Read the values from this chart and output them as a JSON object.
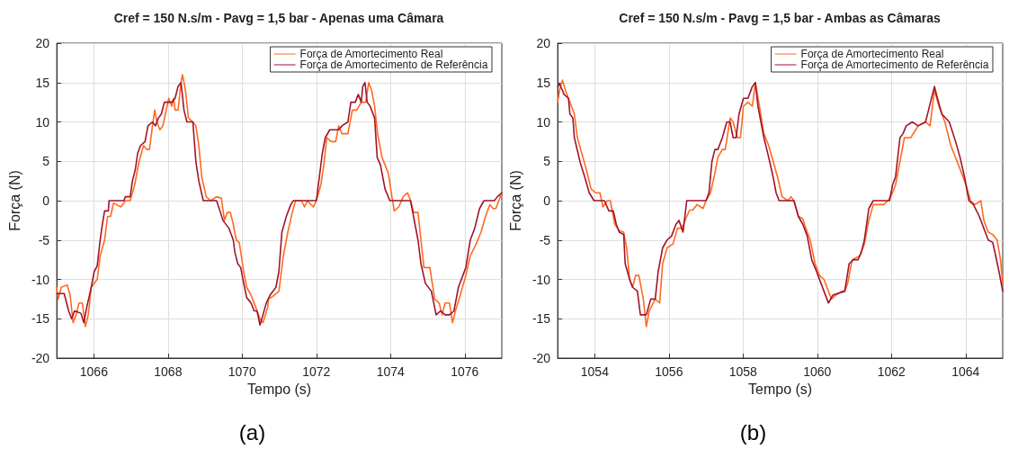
{
  "chart_data": [
    {
      "type": "line",
      "title": "Cref = 150 N.s/m - Pavg = 1,5 bar - Apenas uma Câmara",
      "xlabel": "Tempo (s)",
      "ylabel": "Força (N)",
      "annotations": [
        "(a)"
      ],
      "xlim": [
        1065,
        1077
      ],
      "xticks": [
        1066,
        1068,
        1070,
        1072,
        1074,
        1076
      ],
      "ylim": [
        -20,
        20
      ],
      "yticks": [
        -20,
        -15,
        -10,
        -5,
        0,
        5,
        10,
        15,
        20
      ],
      "grid": true,
      "legend": "top right",
      "marker": "none",
      "line_style": "solid",
      "series": [
        {
          "name": "Força de Amortecimento Real",
          "color": "#ff6a1f",
          "x": [
            1065.0,
            1065.04,
            1065.12,
            1065.28,
            1065.36,
            1065.44,
            1065.52,
            1065.6,
            1065.69,
            1065.77,
            1065.85,
            1065.93,
            1066.09,
            1066.17,
            1066.29,
            1066.37,
            1066.45,
            1066.53,
            1066.73,
            1066.85,
            1066.98,
            1067.1,
            1067.22,
            1067.34,
            1067.42,
            1067.5,
            1067.58,
            1067.64,
            1067.7,
            1067.78,
            1067.86,
            1068.02,
            1068.1,
            1068.15,
            1068.19,
            1068.27,
            1068.35,
            1068.39,
            1068.47,
            1068.55,
            1068.67,
            1068.75,
            1068.83,
            1068.91,
            1069.03,
            1069.15,
            1069.31,
            1069.44,
            1069.52,
            1069.6,
            1069.68,
            1069.76,
            1069.84,
            1069.92,
            1070.04,
            1070.12,
            1070.24,
            1070.36,
            1070.48,
            1070.56,
            1070.69,
            1070.71,
            1070.87,
            1070.99,
            1071.11,
            1071.23,
            1071.35,
            1071.44,
            1071.6,
            1071.68,
            1071.76,
            1071.92,
            1072.0,
            1072.12,
            1072.2,
            1072.28,
            1072.4,
            1072.52,
            1072.6,
            1072.69,
            1072.85,
            1072.97,
            1073.09,
            1073.21,
            1073.33,
            1073.41,
            1073.49,
            1073.57,
            1073.65,
            1073.77,
            1073.94,
            1074.02,
            1074.1,
            1074.22,
            1074.34,
            1074.46,
            1074.54,
            1074.62,
            1074.74,
            1074.82,
            1074.9,
            1075.06,
            1075.19,
            1075.31,
            1075.39,
            1075.47,
            1075.59,
            1075.67,
            1075.75,
            1075.91,
            1076.03,
            1076.15,
            1076.31,
            1076.44,
            1076.56,
            1076.68,
            1076.76,
            1076.84,
            1076.92,
            1077.0
          ],
          "values": [
            -11,
            -12.5,
            -11,
            -10.7,
            -12,
            -15.5,
            -14.5,
            -13,
            -13,
            -16,
            -14.5,
            -11,
            -10,
            -7,
            -5,
            -2,
            -2,
            -0.3,
            -0.8,
            0,
            0,
            2,
            5,
            7,
            6.5,
            6.5,
            9.5,
            11.5,
            10,
            9,
            9.5,
            13,
            12,
            13,
            11.5,
            11.5,
            15,
            16,
            14,
            10.5,
            10,
            9.5,
            7,
            3,
            0.5,
            0,
            0.5,
            0.3,
            -2.5,
            -1.5,
            -1.5,
            -3,
            -5,
            -5.3,
            -9,
            -11,
            -12,
            -13.5,
            -15,
            -15.5,
            -13.5,
            -12.5,
            -12,
            -11.5,
            -7,
            -4,
            -1.5,
            0,
            0,
            -0.8,
            0,
            -0.8,
            0,
            2,
            4.5,
            8,
            7.5,
            7.5,
            9.5,
            8.5,
            8.5,
            11.5,
            11.5,
            12.5,
            12.5,
            15,
            14,
            12,
            8.5,
            5.5,
            3.5,
            1,
            -1.3,
            -0.8,
            0.5,
            1,
            0,
            -1.5,
            -1.5,
            -5,
            -8.5,
            -8.5,
            -12.5,
            -13,
            -14.5,
            -13,
            -13,
            -15.5,
            -14,
            -11.5,
            -9.5,
            -7,
            -5.5,
            -4,
            -2,
            -0.5,
            -1,
            -1,
            0,
            1
          ]
        },
        {
          "name": "Força de Amortecimento de Referência",
          "color": "#a1132e",
          "x": [
            1065.0,
            1065.2,
            1065.32,
            1065.4,
            1065.48,
            1065.65,
            1065.73,
            1065.81,
            1065.93,
            1066.01,
            1066.09,
            1066.17,
            1066.23,
            1066.29,
            1066.39,
            1066.41,
            1066.81,
            1066.85,
            1066.98,
            1067.04,
            1067.12,
            1067.18,
            1067.26,
            1067.38,
            1067.46,
            1067.58,
            1067.66,
            1067.74,
            1067.82,
            1067.9,
            1068.1,
            1068.19,
            1068.27,
            1068.35,
            1068.43,
            1068.51,
            1068.67,
            1068.75,
            1068.83,
            1068.95,
            1069.31,
            1069.4,
            1069.48,
            1069.64,
            1069.76,
            1069.8,
            1069.88,
            1069.96,
            1070.04,
            1070.12,
            1070.24,
            1070.32,
            1070.4,
            1070.48,
            1070.56,
            1070.65,
            1070.75,
            1070.91,
            1070.99,
            1071.07,
            1071.19,
            1071.31,
            1071.38,
            1072.0,
            1072.08,
            1072.16,
            1072.24,
            1072.36,
            1072.6,
            1072.69,
            1072.85,
            1072.93,
            1073.05,
            1073.13,
            1073.21,
            1073.25,
            1073.31,
            1073.37,
            1073.45,
            1073.57,
            1073.64,
            1073.73,
            1073.85,
            1073.98,
            1074.54,
            1074.66,
            1074.74,
            1074.82,
            1074.94,
            1075.1,
            1075.23,
            1075.35,
            1075.47,
            1075.59,
            1075.71,
            1075.83,
            1076.03,
            1076.15,
            1076.27,
            1076.4,
            1076.52,
            1076.8,
            1076.88,
            1077.0
          ],
          "values": [
            -11.8,
            -11.8,
            -14,
            -15,
            -14,
            -14.3,
            -15.5,
            -13.5,
            -11,
            -9,
            -8.3,
            -5,
            -3,
            -1.3,
            -1.3,
            0,
            0,
            0.5,
            0.5,
            2.5,
            4,
            6,
            7,
            7.5,
            9.5,
            10,
            9.5,
            10.5,
            11,
            12.5,
            12.5,
            13,
            14.5,
            15,
            11.5,
            10,
            10,
            5,
            2.5,
            0,
            0,
            -1.3,
            -2.5,
            -3.5,
            -5,
            -6.5,
            -8,
            -8.5,
            -10.5,
            -12.3,
            -13,
            -14,
            -14,
            -15.8,
            -14.5,
            -13,
            -12,
            -11,
            -9,
            -4,
            -2,
            -0.5,
            0,
            0,
            3,
            6,
            8,
            9,
            9,
            9.5,
            10,
            12.5,
            12.5,
            13.5,
            12.5,
            14.5,
            15,
            12.5,
            12,
            10.5,
            5.5,
            4.5,
            1.5,
            0,
            0,
            -3,
            -5,
            -8,
            -10.5,
            -11.5,
            -14.5,
            -14,
            -14.5,
            -14.5,
            -14,
            -11,
            -8.5,
            -5,
            -3.5,
            -1,
            0,
            0,
            0.5,
            1
          ]
        }
      ]
    },
    {
      "type": "line",
      "title": "Cref = 150 N.s/m - Pavg = 1,5 bar - Ambas as Câmaras",
      "xlabel": "Tempo (s)",
      "ylabel": "Força (N)",
      "annotations": [
        "(b)"
      ],
      "xlim": [
        1053,
        1065
      ],
      "xticks": [
        1054,
        1056,
        1058,
        1060,
        1062,
        1064
      ],
      "ylim": [
        -20,
        20
      ],
      "yticks": [
        -20,
        -15,
        -10,
        -5,
        0,
        5,
        10,
        15,
        20
      ],
      "grid": true,
      "legend": "top right",
      "marker": "none",
      "line_style": "solid",
      "series": [
        {
          "name": "Força de Amortecimento Real",
          "color": "#ff6a1f",
          "x": [
            1053.0,
            1053.05,
            1053.13,
            1053.21,
            1053.33,
            1053.45,
            1053.53,
            1053.65,
            1053.77,
            1053.9,
            1054.02,
            1054.14,
            1054.22,
            1054.34,
            1054.42,
            1054.54,
            1054.66,
            1054.78,
            1054.86,
            1054.94,
            1055.02,
            1055.1,
            1055.19,
            1055.31,
            1055.39,
            1055.47,
            1055.63,
            1055.75,
            1055.83,
            1055.95,
            1056.11,
            1056.23,
            1056.35,
            1056.48,
            1056.56,
            1056.64,
            1056.76,
            1056.92,
            1057.0,
            1057.12,
            1057.24,
            1057.32,
            1057.44,
            1057.52,
            1057.65,
            1057.73,
            1057.85,
            1057.93,
            1058.01,
            1058.13,
            1058.25,
            1058.33,
            1058.44,
            1058.56,
            1058.69,
            1058.81,
            1058.93,
            1059.05,
            1059.21,
            1059.29,
            1059.37,
            1059.49,
            1059.61,
            1059.69,
            1059.81,
            1059.94,
            1060.06,
            1060.18,
            1060.3,
            1060.38,
            1060.5,
            1060.66,
            1060.74,
            1060.82,
            1060.94,
            1061.15,
            1061.27,
            1061.39,
            1061.51,
            1061.63,
            1061.79,
            1061.91,
            1062.03,
            1062.11,
            1062.23,
            1062.35,
            1062.52,
            1062.72,
            1062.92,
            1063.04,
            1063.16,
            1063.28,
            1063.44,
            1063.6,
            1063.81,
            1064.01,
            1064.13,
            1064.25,
            1064.41,
            1064.49,
            1064.61,
            1064.73,
            1064.85,
            1064.94,
            1065.0
          ],
          "values": [
            12.5,
            14,
            15.3,
            14,
            12.5,
            11,
            8,
            6,
            4,
            1.5,
            1,
            1,
            -0.8,
            0,
            0,
            -3,
            -3.8,
            -4,
            -6,
            -10,
            -11,
            -9.5,
            -9.5,
            -12.5,
            -16,
            -14,
            -12.5,
            -13,
            -8,
            -6,
            -5.5,
            -3.5,
            -3.5,
            -2,
            -1.2,
            -1.2,
            -0.5,
            -1,
            0,
            1,
            3.5,
            5.5,
            6.5,
            6.5,
            10.5,
            10,
            8,
            8,
            12,
            12.5,
            12,
            15,
            12,
            8.5,
            7,
            5,
            3,
            0.5,
            0,
            0.5,
            0,
            -2,
            -2.3,
            -3.5,
            -5,
            -8,
            -9.5,
            -10,
            -11.5,
            -12.5,
            -12,
            -11.5,
            -11.5,
            -10.5,
            -7.5,
            -7,
            -5.5,
            -2.5,
            -0.5,
            -0.5,
            -0.5,
            0,
            1,
            2,
            5,
            8,
            8,
            9.5,
            10,
            9.5,
            14,
            12,
            10,
            7,
            4.5,
            2,
            0,
            -0.5,
            0,
            -2.5,
            -4,
            -4.3,
            -5,
            -7.5,
            -10.5
          ]
        },
        {
          "name": "Força de Amortecimento de Referência",
          "color": "#a1132e",
          "x": [
            1053.0,
            1053.05,
            1053.13,
            1053.17,
            1053.29,
            1053.33,
            1053.41,
            1053.45,
            1053.55,
            1053.61,
            1053.73,
            1053.85,
            1053.98,
            1054.26,
            1054.38,
            1054.5,
            1054.58,
            1054.66,
            1054.78,
            1054.82,
            1054.94,
            1055.02,
            1055.15,
            1055.23,
            1055.39,
            1055.51,
            1055.63,
            1055.71,
            1055.83,
            1055.95,
            1056.07,
            1056.19,
            1056.27,
            1056.38,
            1056.48,
            1057.0,
            1057.08,
            1057.16,
            1057.24,
            1057.32,
            1057.44,
            1057.56,
            1057.65,
            1057.73,
            1057.81,
            1057.89,
            1058.01,
            1058.13,
            1058.25,
            1058.33,
            1058.4,
            1058.48,
            1058.56,
            1058.69,
            1058.81,
            1058.89,
            1058.97,
            1059.37,
            1059.49,
            1059.61,
            1059.73,
            1059.85,
            1059.98,
            1060.1,
            1060.26,
            1060.3,
            1060.42,
            1060.74,
            1060.86,
            1060.98,
            1061.1,
            1061.19,
            1061.27,
            1061.39,
            1061.51,
            1061.95,
            1062.03,
            1062.11,
            1062.23,
            1062.31,
            1062.4,
            1062.56,
            1062.72,
            1062.92,
            1063.0,
            1063.08,
            1063.16,
            1063.24,
            1063.36,
            1063.56,
            1063.73,
            1063.85,
            1063.97,
            1064.09,
            1064.21,
            1064.37,
            1064.49,
            1064.61,
            1064.73,
            1064.81,
            1064.9,
            1065.0
          ],
          "values": [
            14.5,
            14.8,
            14,
            13.5,
            13,
            11,
            10.5,
            8,
            6,
            4.8,
            3,
            1,
            0,
            0,
            -1.3,
            -1.3,
            -3,
            -4,
            -4.3,
            -8,
            -10,
            -11,
            -11.5,
            -14.5,
            -14.5,
            -12.5,
            -12.5,
            -9,
            -6,
            -5,
            -4.5,
            -3,
            -2.5,
            -4,
            0,
            0,
            1,
            5,
            6.5,
            6.5,
            8,
            10,
            10,
            8,
            8,
            11,
            13,
            13,
            14.5,
            15,
            12,
            10,
            8,
            5.5,
            3,
            1,
            0,
            0,
            -2,
            -3,
            -4.5,
            -7.5,
            -9,
            -10.5,
            -12.5,
            -13,
            -12,
            -11.5,
            -8,
            -7.5,
            -7.5,
            -6.5,
            -5,
            -1,
            0,
            0,
            2,
            3,
            8,
            8.5,
            9.5,
            10,
            9.5,
            10,
            11.5,
            13,
            14.5,
            13,
            11,
            10,
            7.5,
            5.5,
            3,
            0,
            -0.5,
            -2,
            -3.5,
            -5,
            -5.3,
            -7,
            -9,
            -11.5
          ]
        }
      ]
    }
  ]
}
